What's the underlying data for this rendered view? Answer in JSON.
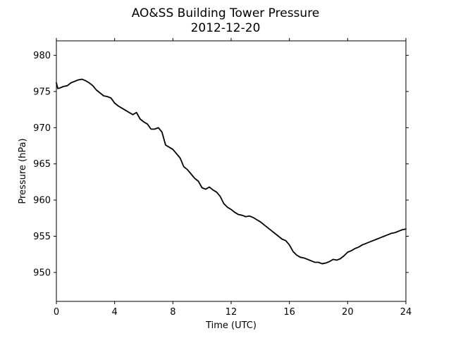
{
  "chart_data": {
    "type": "line",
    "title": "AO&SS Building Tower Pressure",
    "subtitle": "2012-12-20",
    "xlabel": "Time (UTC)",
    "ylabel": "Pressure (hPa)",
    "xlim": [
      0,
      24
    ],
    "ylim": [
      946,
      982
    ],
    "xticks": [
      0,
      4,
      8,
      12,
      16,
      20,
      24
    ],
    "yticks": [
      950,
      955,
      960,
      965,
      970,
      975,
      980
    ],
    "grid": false,
    "line_color": "#000000",
    "series": [
      {
        "x": [
          0,
          0.1,
          0.25,
          0.5,
          0.75,
          1.0,
          1.25,
          1.5,
          1.75,
          2.0,
          2.25,
          2.5,
          2.75,
          3.0,
          3.25,
          3.5,
          3.75,
          4.0,
          4.25,
          4.5,
          4.75,
          5.0,
          5.25,
          5.5,
          5.75,
          6.0,
          6.25,
          6.5,
          6.75,
          7.0,
          7.25,
          7.5,
          7.75,
          8.0,
          8.25,
          8.5,
          8.75,
          9.0,
          9.25,
          9.5,
          9.75,
          10.0,
          10.25,
          10.5,
          10.75,
          11.0,
          11.25,
          11.5,
          11.75,
          12.0,
          12.25,
          12.5,
          12.75,
          13.0,
          13.25,
          13.5,
          13.75,
          14.0,
          14.25,
          14.5,
          14.75,
          15.0,
          15.25,
          15.5,
          15.75,
          16.0,
          16.25,
          16.5,
          16.75,
          17.0,
          17.25,
          17.5,
          17.75,
          18.0,
          18.25,
          18.5,
          18.75,
          19.0,
          19.25,
          19.5,
          19.75,
          20.0,
          20.25,
          20.5,
          20.75,
          21.0,
          21.25,
          21.5,
          21.75,
          22.0,
          22.25,
          22.5,
          22.75,
          23.0,
          23.25,
          23.5,
          23.75,
          24.0
        ],
        "values": [
          976.2,
          975.4,
          975.5,
          975.7,
          975.8,
          976.2,
          976.4,
          976.6,
          976.7,
          976.5,
          976.2,
          975.8,
          975.2,
          974.8,
          974.4,
          974.3,
          974.1,
          973.4,
          973.0,
          972.7,
          972.4,
          972.1,
          971.8,
          972.1,
          971.2,
          970.8,
          970.5,
          969.8,
          969.8,
          970.0,
          969.4,
          967.6,
          967.3,
          967.0,
          966.4,
          965.8,
          964.6,
          964.2,
          963.6,
          963.0,
          962.6,
          961.7,
          961.5,
          961.8,
          961.4,
          961.1,
          960.5,
          959.5,
          959.0,
          958.7,
          958.3,
          958.0,
          957.9,
          957.7,
          957.8,
          957.6,
          957.3,
          957.0,
          956.6,
          956.2,
          955.8,
          955.4,
          955.0,
          954.6,
          954.4,
          953.8,
          952.9,
          952.4,
          952.1,
          952.0,
          951.8,
          951.6,
          951.4,
          951.4,
          951.2,
          951.3,
          951.5,
          951.8,
          951.7,
          951.9,
          952.3,
          952.8,
          953.0,
          953.3,
          953.5,
          953.8,
          954.0,
          954.2,
          954.4,
          954.6,
          954.8,
          955.0,
          955.2,
          955.4,
          955.5,
          955.7,
          955.9,
          956.0
        ]
      }
    ]
  }
}
